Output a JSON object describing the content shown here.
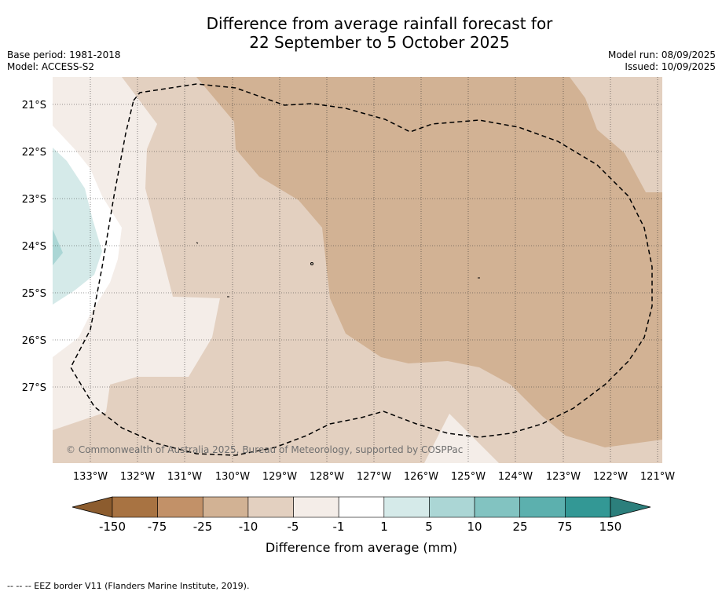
{
  "title_line1": "Difference from average rainfall forecast for",
  "title_line2": "22 September to 5 October 2025",
  "base_period": "Base period: 1981-2018",
  "model": "Model: ACCESS-S2",
  "model_run": "Model run: 08/09/2025",
  "issued": "Issued: 10/09/2025",
  "lat_labels": [
    "21°S",
    "22°S",
    "23°S",
    "24°S",
    "25°S",
    "26°S",
    "27°S"
  ],
  "lon_labels": [
    "133°W",
    "132°W",
    "131°W",
    "130°W",
    "129°W",
    "128°W",
    "127°W",
    "126°W",
    "125°W",
    "124°W",
    "123°W",
    "122°W",
    "121°W"
  ],
  "copyright": "© Commonwealth of Australia 2025, Bureau of Meteorology, supported by COSPPac",
  "colorbar": {
    "label": "Difference from average (mm)",
    "ticks": [
      "-150",
      "-75",
      "-25",
      "-10",
      "-5",
      "-1",
      "1",
      "5",
      "10",
      "25",
      "75",
      "150"
    ],
    "colors": [
      "#a87342",
      "#c29168",
      "#d2b294",
      "#e3d0c0",
      "#f4ede8",
      "#ffffff",
      "#d5eae9",
      "#abd6d5",
      "#82c3c1",
      "#5cb0ae",
      "#339895"
    ],
    "low_extend_color": "#8c5c2e",
    "high_extend_color": "#2c7f7c"
  },
  "footnote": "--  --  -- EEZ border V11 (Flanders Marine Institute, 2019)."
}
